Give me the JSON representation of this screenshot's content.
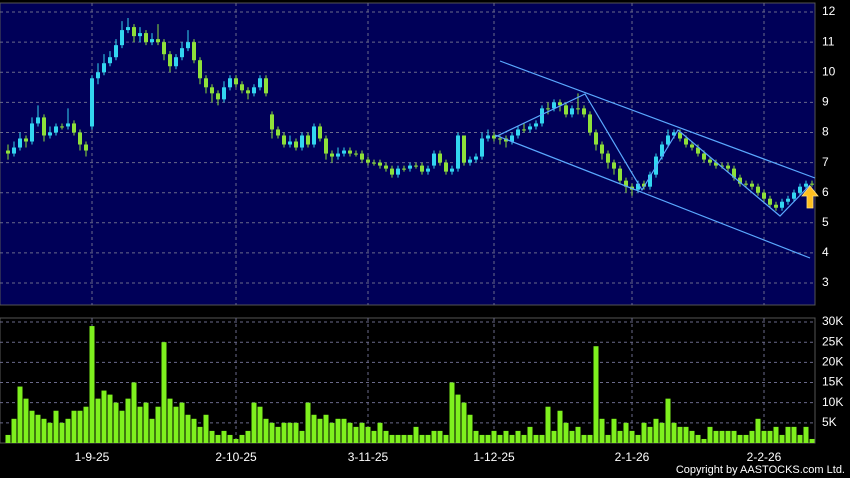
{
  "chart_data": [
    {
      "type": "candlestick",
      "ylim": [
        2.27,
        12.3
      ],
      "yticks": [
        3,
        4,
        5,
        6,
        7,
        8,
        9,
        10,
        11,
        12
      ],
      "grid": true,
      "up_color": "#33d6f0",
      "down_color": "#8ee03a",
      "open": [
        7.4,
        7.3,
        7.5,
        7.8,
        7.7,
        8.3,
        8.5,
        7.9,
        8.0,
        8.2,
        8.2,
        8.3,
        8.0,
        7.6,
        8.2,
        9.8,
        10.0,
        10.3,
        10.5,
        10.9,
        11.4,
        11.5,
        11.2,
        11.3,
        11.0,
        11.1,
        11.0,
        10.6,
        10.2,
        10.5,
        10.8,
        11.0,
        10.4,
        9.8,
        9.5,
        9.3,
        9.1,
        9.5,
        9.8,
        9.6,
        9.4,
        9.3,
        9.5,
        9.8,
        8.6,
        8.1,
        7.9,
        7.6,
        7.7,
        7.5,
        7.9,
        7.6,
        8.2,
        7.8,
        7.3,
        7.2,
        7.3,
        7.4,
        7.3,
        7.3,
        7.1,
        7.0,
        7.0,
        6.9,
        6.8,
        6.6,
        6.8,
        6.8,
        6.9,
        6.9,
        6.7,
        6.9,
        7.3,
        7.0,
        6.7,
        6.8,
        7.9,
        7.0,
        7.1,
        7.2,
        7.8,
        7.9,
        7.8,
        7.8,
        7.7,
        7.9,
        8.1,
        8.1,
        8.2,
        8.3,
        8.8,
        8.8,
        9.0,
        8.9,
        8.6,
        8.8,
        8.8,
        8.6,
        8.0,
        7.6,
        7.3,
        7.0,
        6.8,
        6.4,
        6.2,
        6.1,
        6.3,
        6.2,
        6.6,
        7.2,
        7.6,
        7.9,
        8.0,
        7.8,
        7.6,
        7.5,
        7.3,
        7.1,
        7.0,
        6.9,
        6.9,
        6.8,
        6.5,
        6.3,
        6.3,
        6.2,
        6.0,
        5.8,
        5.6,
        5.5,
        5.7,
        5.8,
        6.0,
        6.2,
        6.3
      ],
      "high": [
        7.6,
        7.7,
        8.0,
        7.9,
        8.5,
        8.9,
        8.6,
        8.2,
        8.3,
        8.3,
        8.8,
        8.4,
        8.1,
        7.7,
        9.9,
        10.3,
        10.6,
        10.7,
        11.1,
        11.7,
        11.8,
        11.6,
        11.5,
        11.4,
        11.3,
        11.6,
        11.1,
        10.7,
        10.6,
        11.0,
        11.4,
        11.1,
        10.5,
        9.9,
        9.6,
        9.4,
        9.7,
        9.9,
        9.9,
        9.7,
        9.5,
        9.6,
        9.9,
        9.9,
        8.7,
        8.2,
        8.0,
        7.9,
        7.8,
        8.0,
        8.0,
        8.3,
        8.3,
        7.9,
        7.4,
        7.5,
        7.5,
        7.5,
        7.4,
        7.4,
        7.2,
        7.1,
        7.1,
        7.0,
        6.9,
        6.9,
        6.9,
        7.0,
        7.0,
        7.0,
        6.9,
        7.4,
        7.4,
        7.1,
        6.9,
        8.0,
        7.9,
        7.2,
        7.3,
        8.0,
        8.1,
        8.0,
        7.9,
        7.9,
        8.0,
        8.2,
        8.3,
        8.3,
        8.4,
        8.9,
        9.0,
        9.1,
        9.1,
        9.0,
        8.9,
        9.3,
        8.9,
        8.7,
        8.1,
        7.7,
        7.4,
        7.1,
        6.9,
        6.5,
        6.3,
        6.4,
        6.4,
        6.7,
        7.3,
        7.7,
        8.1,
        8.1,
        8.1,
        7.9,
        7.7,
        7.6,
        7.4,
        7.2,
        7.1,
        7.0,
        7.0,
        6.9,
        6.6,
        6.4,
        6.4,
        6.3,
        6.1,
        5.9,
        5.7,
        5.8,
        5.9,
        6.1,
        6.3,
        6.4,
        6.4
      ],
      "low": [
        7.1,
        7.2,
        7.4,
        7.5,
        7.6,
        8.2,
        7.7,
        7.8,
        7.9,
        8.1,
        8.1,
        7.9,
        7.4,
        7.2,
        8.1,
        9.6,
        9.9,
        10.2,
        10.4,
        10.8,
        11.3,
        11.0,
        11.0,
        10.9,
        10.9,
        10.9,
        10.4,
        10.0,
        10.1,
        10.4,
        10.7,
        10.3,
        9.6,
        9.3,
        9.0,
        8.9,
        9.0,
        9.4,
        9.5,
        9.3,
        9.1,
        9.2,
        9.4,
        9.2,
        7.8,
        7.8,
        7.5,
        7.5,
        7.4,
        7.4,
        7.5,
        7.5,
        7.7,
        7.1,
        7.0,
        7.1,
        7.2,
        7.2,
        7.2,
        7.0,
        6.9,
        6.9,
        6.8,
        6.7,
        6.5,
        6.5,
        6.7,
        6.7,
        6.8,
        6.6,
        6.6,
        6.8,
        6.9,
        6.6,
        6.6,
        6.7,
        6.9,
        6.9,
        7.0,
        7.1,
        7.7,
        7.7,
        7.6,
        7.5,
        7.6,
        7.8,
        8.0,
        8.0,
        8.1,
        8.2,
        8.6,
        8.7,
        8.7,
        8.5,
        8.5,
        8.6,
        8.5,
        7.9,
        7.4,
        7.1,
        6.8,
        6.6,
        6.3,
        6.0,
        5.9,
        6.0,
        6.1,
        6.1,
        6.5,
        7.1,
        7.5,
        7.8,
        7.7,
        7.5,
        7.4,
        7.2,
        7.0,
        6.9,
        6.8,
        6.8,
        6.7,
        6.4,
        6.2,
        6.2,
        6.1,
        5.9,
        5.7,
        5.5,
        5.4,
        5.4,
        5.6,
        5.7,
        5.9,
        6.1,
        6.2
      ],
      "close": [
        7.3,
        7.5,
        7.8,
        7.7,
        8.3,
        8.5,
        7.9,
        8.0,
        8.2,
        8.2,
        8.3,
        8.0,
        7.6,
        7.4,
        9.8,
        10.0,
        10.3,
        10.5,
        10.9,
        11.4,
        11.5,
        11.2,
        11.3,
        11.0,
        11.1,
        11.0,
        10.6,
        10.2,
        10.5,
        10.8,
        11.0,
        10.4,
        9.8,
        9.5,
        9.3,
        9.1,
        9.5,
        9.8,
        9.6,
        9.4,
        9.3,
        9.5,
        9.8,
        9.3,
        8.1,
        7.9,
        7.6,
        7.7,
        7.5,
        7.9,
        7.6,
        8.2,
        7.8,
        7.3,
        7.2,
        7.3,
        7.4,
        7.3,
        7.3,
        7.1,
        7.0,
        7.0,
        6.9,
        6.8,
        6.6,
        6.8,
        6.8,
        6.9,
        6.9,
        6.7,
        6.8,
        7.3,
        7.0,
        6.7,
        6.8,
        7.9,
        7.0,
        7.1,
        7.2,
        7.8,
        7.9,
        7.8,
        7.8,
        7.7,
        7.9,
        8.1,
        8.1,
        8.2,
        8.3,
        8.8,
        8.8,
        9.0,
        8.9,
        8.6,
        8.8,
        8.8,
        8.6,
        8.0,
        7.6,
        7.3,
        7.0,
        6.8,
        6.4,
        6.2,
        6.1,
        6.3,
        6.2,
        6.6,
        7.2,
        7.6,
        7.9,
        8.0,
        7.8,
        7.6,
        7.5,
        7.3,
        7.1,
        7.0,
        6.9,
        6.9,
        6.8,
        6.5,
        6.3,
        6.3,
        6.2,
        6.0,
        5.8,
        5.6,
        5.5,
        5.7,
        5.8,
        6.0,
        6.2,
        6.3,
        6.3
      ]
    },
    {
      "type": "bar",
      "color": "#7ef01e",
      "ylim": [
        0,
        31000
      ],
      "yticks": [
        {
          "value": 5000,
          "label": "5K"
        },
        {
          "value": 10000,
          "label": "10K"
        },
        {
          "value": 15000,
          "label": "15K"
        },
        {
          "value": 20000,
          "label": "20K"
        },
        {
          "value": 25000,
          "label": "25K"
        },
        {
          "value": 30000,
          "label": "30K"
        }
      ],
      "grid": true,
      "categories": [
        null,
        null,
        null,
        null,
        null,
        null,
        null,
        null,
        null,
        null,
        null,
        null,
        null,
        null,
        "1-9-25",
        null,
        null,
        null,
        null,
        null,
        null,
        null,
        null,
        null,
        null,
        null,
        null,
        null,
        null,
        null,
        null,
        null,
        null,
        null,
        null,
        null,
        null,
        null,
        "2-10-25",
        null,
        null,
        null,
        null,
        null,
        null,
        null,
        null,
        null,
        null,
        null,
        null,
        null,
        null,
        null,
        null,
        null,
        null,
        null,
        null,
        null,
        "3-11-25",
        null,
        null,
        null,
        null,
        null,
        null,
        null,
        null,
        null,
        null,
        null,
        null,
        null,
        null,
        null,
        null,
        null,
        null,
        null,
        null,
        "1-12-25",
        null,
        null,
        null,
        null,
        null,
        null,
        null,
        null,
        null,
        null,
        null,
        null,
        null,
        null,
        null,
        null,
        null,
        null,
        null,
        null,
        null,
        null,
        "2-1-26",
        null,
        null,
        null,
        null,
        null,
        null,
        null,
        null,
        null,
        null,
        null,
        null,
        null,
        null,
        null,
        null,
        null,
        null,
        null,
        null,
        null,
        "2-2-26",
        null,
        null,
        null,
        null,
        null,
        null,
        null,
        null
      ],
      "values": [
        2000,
        6000,
        14000,
        11000,
        8000,
        7000,
        6000,
        5000,
        8000,
        5000,
        6000,
        8000,
        8000,
        9000,
        29000,
        11000,
        13000,
        12000,
        10000,
        8000,
        11000,
        15000,
        9000,
        10000,
        6000,
        9000,
        25000,
        11000,
        9000,
        10000,
        7000,
        6000,
        4000,
        7000,
        3000,
        2000,
        3000,
        2000,
        1000,
        2000,
        3000,
        10000,
        9000,
        6000,
        5000,
        4000,
        5000,
        5000,
        5000,
        3000,
        10000,
        7000,
        6000,
        7000,
        5000,
        6000,
        6000,
        5000,
        4000,
        5000,
        4000,
        3000,
        5000,
        3000,
        2000,
        2000,
        2000,
        2000,
        4000,
        2000,
        2000,
        3000,
        3000,
        2000,
        15000,
        12000,
        10000,
        7000,
        3000,
        2000,
        2000,
        3000,
        2000,
        3000,
        2000,
        3000,
        2000,
        4000,
        2000,
        2000,
        9000,
        3000,
        8000,
        5000,
        3000,
        4000,
        2000,
        2000,
        24000,
        6000,
        2000,
        6000,
        3000,
        5000,
        3000,
        2000,
        5000,
        4000,
        6000,
        5000,
        11000,
        5000,
        4000,
        4000,
        3000,
        2000,
        1000,
        4000,
        3000,
        3000,
        3000,
        3000,
        2000,
        2000,
        3000,
        6000,
        3000,
        3000,
        4000,
        2000,
        4000,
        4000,
        2000,
        4000,
        1000
      ]
    }
  ],
  "copyright": "Copyright by AASTOCKS.com Ltd."
}
